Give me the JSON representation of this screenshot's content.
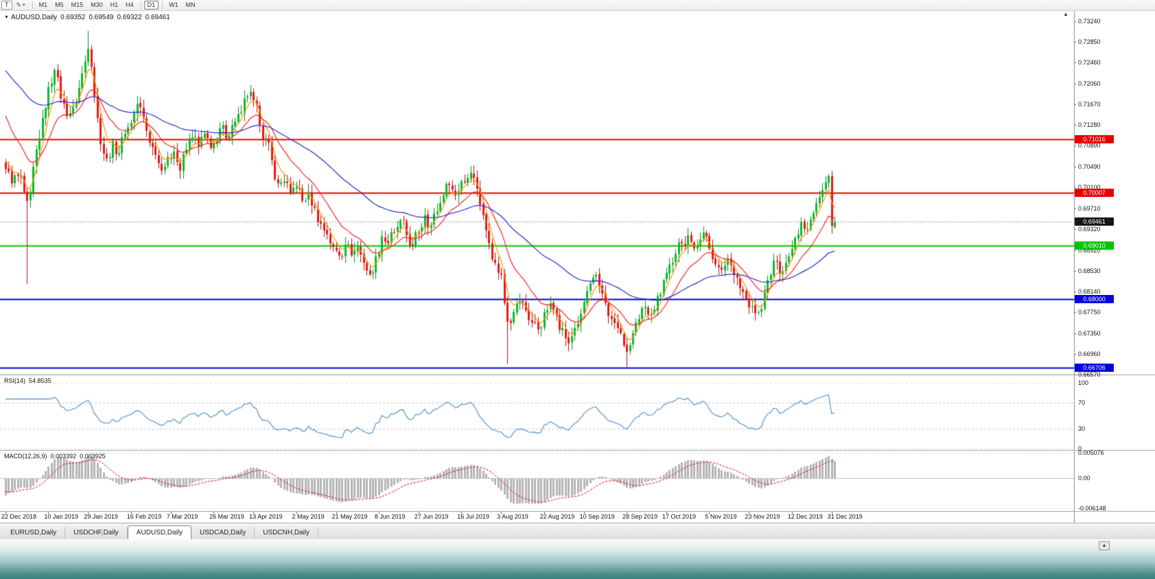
{
  "toolbar": {
    "template_button": "T",
    "draw_tool_glyph": "✎",
    "dropdown_caret": "▾",
    "timeframes": [
      {
        "label": "M1",
        "active": false
      },
      {
        "label": "M5",
        "active": false
      },
      {
        "label": "M15",
        "active": false
      },
      {
        "label": "M30",
        "active": false
      },
      {
        "label": "H1",
        "active": false
      },
      {
        "label": "H4",
        "active": false
      },
      {
        "label": "D1",
        "active": true
      },
      {
        "label": "W1",
        "active": false
      },
      {
        "label": "MN",
        "active": false
      }
    ]
  },
  "chart": {
    "marker": "▼",
    "title": "AUDUSD,Daily",
    "ohlc": {
      "open": "0.69352",
      "high": "0.69549",
      "low": "0.69322",
      "close": "0.69461"
    },
    "shift_marker": "▲",
    "price_axis": [
      "0.73240",
      "0.72850",
      "0.72460",
      "0.72060",
      "0.71670",
      "0.71280",
      "0.70890",
      "0.70490",
      "0.70100",
      "0.69710",
      "0.69320",
      "0.68920",
      "0.68530",
      "0.68140",
      "0.67750",
      "0.67350",
      "0.66960",
      "0.66570"
    ],
    "price_tags": [
      {
        "value": "0.71016",
        "price": 0.71016,
        "color": "#e80000",
        "name": "resistance-1"
      },
      {
        "value": "0.70007",
        "price": 0.70007,
        "color": "#e80000",
        "name": "resistance-2"
      },
      {
        "value": "0.69461",
        "price": 0.69461,
        "color": "#15151c",
        "name": "current-price"
      },
      {
        "value": "0.69010",
        "price": 0.6901,
        "color": "#00c400",
        "name": "support-1"
      },
      {
        "value": "0.68000",
        "price": 0.68,
        "color": "#0000dc",
        "name": "support-2"
      },
      {
        "value": "0.66706",
        "price": 0.66706,
        "color": "#0000dc",
        "name": "support-3"
      }
    ],
    "date_axis": [
      "22 Dec 2018",
      "10 Jan 2019",
      "29 Jan 2019",
      "16 Feb 2019",
      "7 Mar 2019",
      "26 Mar 2019",
      "13 Apr 2019",
      "2 May 2019",
      "21 May 2019",
      "8 Jun 2019",
      "27 Jun 2019",
      "16 Jul 2019",
      "3 Aug 2019",
      "22 Aug 2019",
      "10 Sep 2019",
      "28 Sep 2019",
      "17 Oct 2019",
      "5 Nov 2019",
      "23 Nov 2019",
      "12 Dec 2019",
      "31 Dec 2019"
    ]
  },
  "rsi": {
    "label": "RSI(14)",
    "value": "54.8535",
    "axis": [
      "100",
      "70",
      "30",
      "0"
    ]
  },
  "macd": {
    "label": "MACD(12,26,9)",
    "main_value": "0.003392",
    "signal_value": "0.003925",
    "axis": [
      "0.005076",
      "0.00",
      "-0.006148"
    ]
  },
  "tabs": [
    {
      "label": "EURUSD,Daily",
      "active": false
    },
    {
      "label": "USDCHF,Daily",
      "active": false
    },
    {
      "label": "AUDUSD,Daily",
      "active": true
    },
    {
      "label": "USDCAD,Daily",
      "active": false
    },
    {
      "label": "USDCNH,Daily",
      "active": false
    }
  ],
  "bottom": {
    "scroll_button": "▲"
  },
  "colors": {
    "candle_up": "#00be2c",
    "candle_up_border": "#0b8a24",
    "candle_down": "#f01414",
    "candle_down_border": "#b40e0e",
    "rsi_line": "#4a8cc8",
    "macd_histogram": "#b4b4b4",
    "macd_signal": "#e00000",
    "current_price_line": "#999999",
    "level_red": "#e80000",
    "level_green": "#00c400",
    "level_blue": "#0000dc"
  },
  "chart_data": {
    "type": "candlestick",
    "symbol": "AUDUSD",
    "timeframe": "Daily",
    "n_candles": 272,
    "current_price": 0.69461,
    "last_bar": {
      "open": 0.69352,
      "high": 0.69549,
      "low": 0.69322,
      "close": 0.69461
    },
    "price_range": {
      "top": 0.73435,
      "bottom": 0.6657
    },
    "close_waypoints": [
      [
        0,
        0.7045
      ],
      [
        2,
        0.7018
      ],
      [
        4,
        0.7032
      ],
      [
        6,
        0.7002
      ],
      [
        7,
        0.6985
      ],
      [
        8,
        0.7002
      ],
      [
        10,
        0.7082
      ],
      [
        12,
        0.7142
      ],
      [
        14,
        0.72
      ],
      [
        16,
        0.7232
      ],
      [
        18,
        0.7178
      ],
      [
        20,
        0.7145
      ],
      [
        22,
        0.7162
      ],
      [
        24,
        0.7198
      ],
      [
        26,
        0.7248
      ],
      [
        27,
        0.7272
      ],
      [
        28,
        0.7238
      ],
      [
        29,
        0.7182
      ],
      [
        31,
        0.7092
      ],
      [
        33,
        0.7065
      ],
      [
        35,
        0.7098
      ],
      [
        37,
        0.7075
      ],
      [
        39,
        0.7112
      ],
      [
        41,
        0.7132
      ],
      [
        43,
        0.7168
      ],
      [
        45,
        0.7142
      ],
      [
        47,
        0.7095
      ],
      [
        49,
        0.7072
      ],
      [
        51,
        0.7042
      ],
      [
        53,
        0.7068
      ],
      [
        55,
        0.7078
      ],
      [
        57,
        0.7042
      ],
      [
        59,
        0.7082
      ],
      [
        61,
        0.7105
      ],
      [
        63,
        0.7088
      ],
      [
        65,
        0.7112
      ],
      [
        67,
        0.7085
      ],
      [
        69,
        0.7102
      ],
      [
        71,
        0.7128
      ],
      [
        73,
        0.7108
      ],
      [
        75,
        0.7135
      ],
      [
        77,
        0.7152
      ],
      [
        79,
        0.7182
      ],
      [
        81,
        0.7175
      ],
      [
        83,
        0.7128
      ],
      [
        85,
        0.7102
      ],
      [
        87,
        0.7062
      ],
      [
        89,
        0.7018
      ],
      [
        91,
        0.7022
      ],
      [
        93,
        0.7
      ],
      [
        95,
        0.7012
      ],
      [
        97,
        0.6985
      ],
      [
        99,
        0.7002
      ],
      [
        101,
        0.6972
      ],
      [
        103,
        0.6942
      ],
      [
        105,
        0.6922
      ],
      [
        107,
        0.6898
      ],
      [
        109,
        0.6882
      ],
      [
        111,
        0.6902
      ],
      [
        113,
        0.6882
      ],
      [
        115,
        0.6898
      ],
      [
        117,
        0.6868
      ],
      [
        119,
        0.6846
      ],
      [
        121,
        0.688
      ],
      [
        123,
        0.6918
      ],
      [
        125,
        0.6905
      ],
      [
        127,
        0.6925
      ],
      [
        129,
        0.6948
      ],
      [
        131,
        0.692
      ],
      [
        133,
        0.6902
      ],
      [
        135,
        0.6925
      ],
      [
        137,
        0.6958
      ],
      [
        139,
        0.694
      ],
      [
        141,
        0.6965
      ],
      [
        143,
        0.6995
      ],
      [
        145,
        0.7015
      ],
      [
        147,
        0.6995
      ],
      [
        149,
        0.7022
      ],
      [
        151,
        0.7028
      ],
      [
        152,
        0.7038
      ],
      [
        154,
        0.7008
      ],
      [
        156,
        0.6958
      ],
      [
        158,
        0.6905
      ],
      [
        160,
        0.6868
      ],
      [
        162,
        0.6846
      ],
      [
        163,
        0.6792
      ],
      [
        164,
        0.6757
      ],
      [
        166,
        0.6775
      ],
      [
        168,
        0.6795
      ],
      [
        170,
        0.6778
      ],
      [
        172,
        0.6755
      ],
      [
        174,
        0.6742
      ],
      [
        176,
        0.6775
      ],
      [
        178,
        0.6792
      ],
      [
        180,
        0.6768
      ],
      [
        182,
        0.6745
      ],
      [
        184,
        0.6716
      ],
      [
        186,
        0.6745
      ],
      [
        188,
        0.6772
      ],
      [
        190,
        0.6815
      ],
      [
        192,
        0.684
      ],
      [
        194,
        0.6825
      ],
      [
        196,
        0.6792
      ],
      [
        198,
        0.6762
      ],
      [
        200,
        0.6745
      ],
      [
        202,
        0.6712
      ],
      [
        203,
        0.67
      ],
      [
        205,
        0.6735
      ],
      [
        207,
        0.6762
      ],
      [
        209,
        0.6785
      ],
      [
        211,
        0.6772
      ],
      [
        213,
        0.6805
      ],
      [
        215,
        0.6835
      ],
      [
        217,
        0.6865
      ],
      [
        219,
        0.6885
      ],
      [
        221,
        0.6905
      ],
      [
        223,
        0.692
      ],
      [
        225,
        0.6895
      ],
      [
        227,
        0.6912
      ],
      [
        228,
        0.6925
      ],
      [
        230,
        0.6895
      ],
      [
        232,
        0.6865
      ],
      [
        234,
        0.6855
      ],
      [
        236,
        0.6875
      ],
      [
        238,
        0.6845
      ],
      [
        240,
        0.682
      ],
      [
        242,
        0.68
      ],
      [
        244,
        0.6786
      ],
      [
        246,
        0.6775
      ],
      [
        248,
        0.6812
      ],
      [
        250,
        0.6845
      ],
      [
        252,
        0.687
      ],
      [
        254,
        0.6852
      ],
      [
        256,
        0.688
      ],
      [
        258,
        0.6915
      ],
      [
        260,
        0.6945
      ],
      [
        262,
        0.6932
      ],
      [
        264,
        0.6962
      ],
      [
        266,
        0.6992
      ],
      [
        268,
        0.702
      ],
      [
        269,
        0.7032
      ],
      [
        270,
        0.6938
      ],
      [
        271,
        0.69461
      ]
    ],
    "wick_overrides": [
      {
        "i": 7,
        "low": 0.6828
      },
      {
        "i": 27,
        "high": 0.7306
      },
      {
        "i": 164,
        "low": 0.6677
      },
      {
        "i": 203,
        "low": 0.6671
      },
      {
        "i": 269,
        "high": 0.7036
      }
    ],
    "date_ticks": [
      0,
      14,
      27,
      41,
      54,
      68,
      81,
      95,
      108,
      122,
      135,
      149,
      162,
      176,
      189,
      203,
      216,
      230,
      243,
      257,
      270
    ],
    "levels": [
      {
        "price": 0.71016,
        "color": "#e80000",
        "width": 2
      },
      {
        "price": 0.70007,
        "color": "#e80000",
        "width": 2
      },
      {
        "price": 0.6901,
        "color": "#00c400",
        "width": 2
      },
      {
        "price": 0.68,
        "color": "#0000dc",
        "width": 2
      },
      {
        "price": 0.66706,
        "color": "#0000dc",
        "width": 2
      }
    ],
    "moving_averages": [
      {
        "period": 5,
        "color": "#ff9800",
        "seed": 0.707
      },
      {
        "period": 15,
        "color": "#ff2020",
        "seed": 0.716
      },
      {
        "period": 55,
        "color": "#2828cc",
        "seed": 0.7238
      }
    ],
    "indicators": {
      "rsi": {
        "period": 14,
        "last": 54.8535,
        "levels": [
          70,
          30
        ]
      },
      "macd": {
        "fast": 12,
        "slow": 26,
        "signal": 9,
        "last_main": 0.003392,
        "last_signal": 0.003925
      }
    },
    "macd_axis": {
      "max": 0.005076,
      "min": -0.006148
    }
  }
}
